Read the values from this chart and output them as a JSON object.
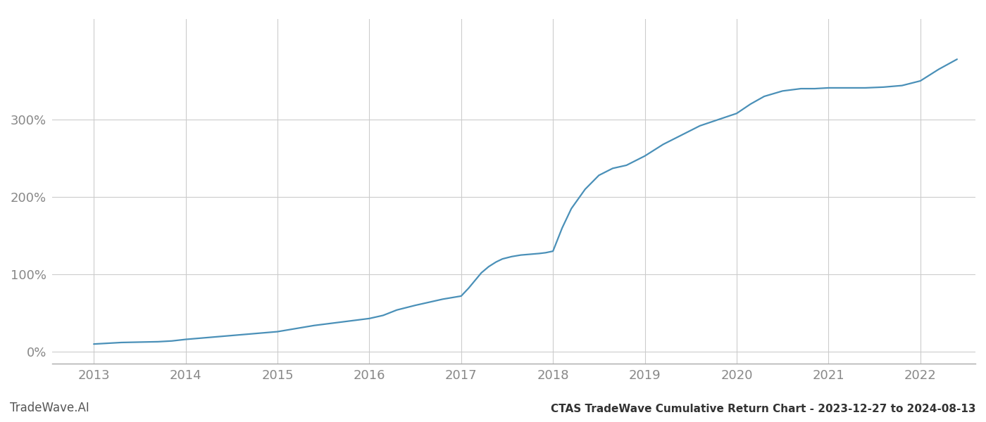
{
  "title": "CTAS TradeWave Cumulative Return Chart - 2023-12-27 to 2024-08-13",
  "watermark": "TradeWave.AI",
  "line_color": "#4a90b8",
  "background_color": "#ffffff",
  "grid_color": "#cccccc",
  "x_years": [
    2013,
    2014,
    2015,
    2016,
    2017,
    2018,
    2019,
    2020,
    2021,
    2022
  ],
  "y_ticks": [
    0,
    100,
    200,
    300
  ],
  "y_labels": [
    "0%",
    "100%",
    "200%",
    "300%"
  ],
  "xlim": [
    2012.55,
    2022.6
  ],
  "ylim": [
    -15,
    430
  ],
  "data_x": [
    2013.0,
    2013.15,
    2013.3,
    2013.5,
    2013.7,
    2013.85,
    2014.0,
    2014.2,
    2014.4,
    2014.6,
    2014.8,
    2015.0,
    2015.2,
    2015.4,
    2015.6,
    2015.8,
    2016.0,
    2016.15,
    2016.3,
    2016.5,
    2016.65,
    2016.8,
    2017.0,
    2017.08,
    2017.15,
    2017.22,
    2017.3,
    2017.38,
    2017.45,
    2017.55,
    2017.65,
    2017.75,
    2017.85,
    2017.92,
    2018.0,
    2018.1,
    2018.2,
    2018.35,
    2018.5,
    2018.65,
    2018.8,
    2019.0,
    2019.2,
    2019.4,
    2019.6,
    2019.8,
    2020.0,
    2020.15,
    2020.3,
    2020.5,
    2020.7,
    2020.85,
    2021.0,
    2021.2,
    2021.4,
    2021.6,
    2021.8,
    2022.0,
    2022.2,
    2022.4
  ],
  "data_y": [
    10,
    11,
    12,
    12.5,
    13,
    14,
    16,
    18,
    20,
    22,
    24,
    26,
    30,
    34,
    37,
    40,
    43,
    47,
    54,
    60,
    64,
    68,
    72,
    82,
    92,
    102,
    110,
    116,
    120,
    123,
    125,
    126,
    127,
    128,
    130,
    160,
    185,
    210,
    228,
    237,
    241,
    253,
    268,
    280,
    292,
    300,
    308,
    320,
    330,
    337,
    340,
    340,
    341,
    341,
    341,
    342,
    344,
    350,
    365,
    378
  ]
}
